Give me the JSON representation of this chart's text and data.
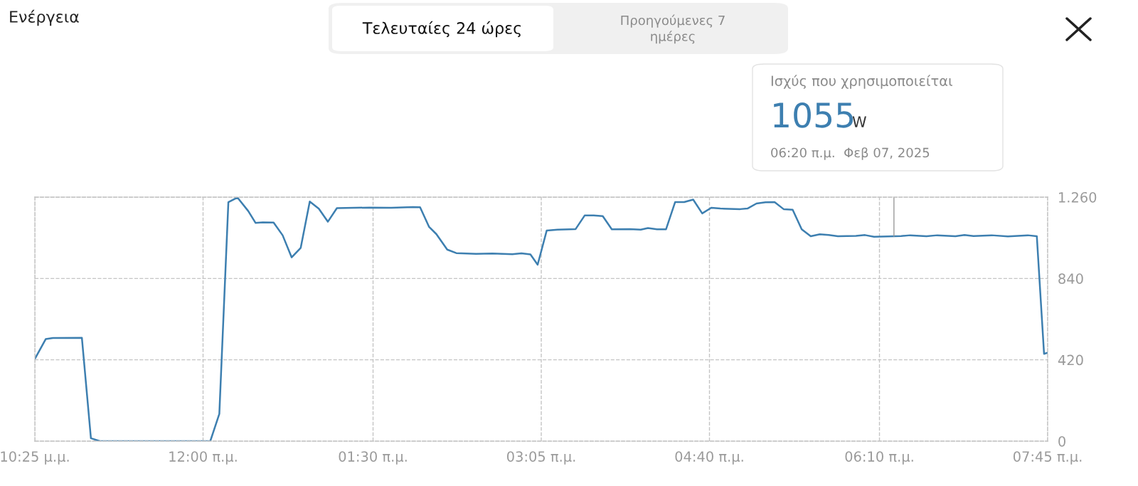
{
  "chart_data": {
    "type": "line",
    "title": "Ενέργεια",
    "x": [
      "2025-02-06T22:25",
      "2025-02-06T22:31",
      "2025-02-06T22:35",
      "2025-02-06T22:51",
      "2025-02-06T22:56",
      "2025-02-06T23:01",
      "2025-02-07T00:02",
      "2025-02-07T00:07",
      "2025-02-07T00:12",
      "2025-02-07T00:17",
      "2025-02-07T00:23",
      "2025-02-07T00:27",
      "2025-02-07T00:31",
      "2025-02-07T00:37",
      "2025-02-07T00:42",
      "2025-02-07T00:47",
      "2025-02-07T00:52",
      "2025-02-07T00:57",
      "2025-02-07T01:02",
      "2025-02-07T01:07",
      "2025-02-07T01:12",
      "2025-02-07T01:30",
      "2025-02-07T01:42",
      "2025-02-07T01:54",
      "2025-02-07T01:58",
      "2025-02-07T02:03",
      "2025-02-07T02:07",
      "2025-02-07T02:13",
      "2025-02-07T02:18",
      "2025-02-07T02:29",
      "2025-02-07T02:38",
      "2025-02-07T02:49",
      "2025-02-07T02:54",
      "2025-02-07T02:59",
      "2025-02-07T03:03",
      "2025-02-07T03:08",
      "2025-02-07T03:14",
      "2025-02-07T03:24",
      "2025-02-07T03:29",
      "2025-02-07T03:34",
      "2025-02-07T03:39",
      "2025-02-07T03:44",
      "2025-02-07T03:54",
      "2025-02-07T04:00",
      "2025-02-07T04:04",
      "2025-02-07T04:09",
      "2025-02-07T04:14",
      "2025-02-07T04:19",
      "2025-02-07T04:24",
      "2025-02-07T04:29",
      "2025-02-07T04:34",
      "2025-02-07T04:39",
      "2025-02-07T04:44",
      "2025-02-07T04:55",
      "2025-02-07T04:59",
      "2025-02-07T05:04",
      "2025-02-07T05:09",
      "2025-02-07T05:14",
      "2025-02-07T05:19",
      "2025-02-07T05:24",
      "2025-02-07T05:29",
      "2025-02-07T05:34",
      "2025-02-07T05:39",
      "2025-02-07T05:44",
      "2025-02-07T05:49",
      "2025-02-07T05:59",
      "2025-02-07T06:04",
      "2025-02-07T06:09",
      "2025-02-07T06:24",
      "2025-02-07T06:29",
      "2025-02-07T06:38",
      "2025-02-07T06:44",
      "2025-02-07T06:54",
      "2025-02-07T06:59",
      "2025-02-07T07:04",
      "2025-02-07T07:14",
      "2025-02-07T07:23",
      "2025-02-07T07:34",
      "2025-02-07T07:39",
      "2025-02-07T07:43",
      "2025-02-07T07:45"
    ],
    "series": [
      {
        "color": "#3d7fb0",
        "values": [
          425,
          527,
          533,
          534,
          15,
          0,
          0,
          141,
          1234,
          1258,
          1188,
          1127,
          1130,
          1129,
          1063,
          949,
          998,
          1237,
          1200,
          1133,
          1203,
          1206,
          1205,
          1209,
          1208,
          1106,
          1069,
          989,
          971,
          967,
          969,
          965,
          970,
          964,
          911,
          1087,
          1092,
          1095,
          1165,
          1165,
          1162,
          1094,
          1095,
          1092,
          1100,
          1094,
          1094,
          1234,
          1234,
          1247,
          1176,
          1205,
          1201,
          1198,
          1201,
          1227,
          1233,
          1234,
          1198,
          1195,
          1094,
          1058,
          1068,
          1064,
          1058,
          1060,
          1064,
          1055,
          1059,
          1063,
          1058,
          1063,
          1058,
          1064,
          1059,
          1063,
          1057,
          1063,
          1058,
          451,
          457
        ]
      }
    ],
    "xlim": [
      "2025-02-06T22:25",
      "2025-02-07T07:45"
    ],
    "xticks": [
      {
        "value": "2025-02-06T22:25",
        "label": "10:25 μ.μ."
      },
      {
        "value": "2025-02-06T23:58",
        "label": "12:00 π.μ."
      },
      {
        "value": "2025-02-07T01:32",
        "label": "01:30 π.μ."
      },
      {
        "value": "2025-02-07T03:05",
        "label": "03:05 π.μ."
      },
      {
        "value": "2025-02-07T04:38",
        "label": "04:40 π.μ."
      },
      {
        "value": "2025-02-07T06:12",
        "label": "06:10 π.μ."
      },
      {
        "value": "2025-02-07T07:45",
        "label": "07:45 π.μ."
      }
    ],
    "ylim": [
      0,
      1260
    ],
    "yticks": [
      0,
      420,
      840,
      {
        "value": 1260,
        "label": "1.260"
      }
    ],
    "grid": true,
    "line_style": "solid",
    "ref_lines": [
      {
        "axis": "x",
        "value": "2025-02-07T06:20",
        "color": "#9a9a9a"
      }
    ],
    "annotations": [
      "Τελευταίες 24 ώρες",
      "Προηγούμενες 7\nημέρες",
      "Ισχύς που χρησιμοποιείται",
      "1055",
      "W",
      "06:20 π.μ.  Φεβ 07, 2025"
    ]
  }
}
